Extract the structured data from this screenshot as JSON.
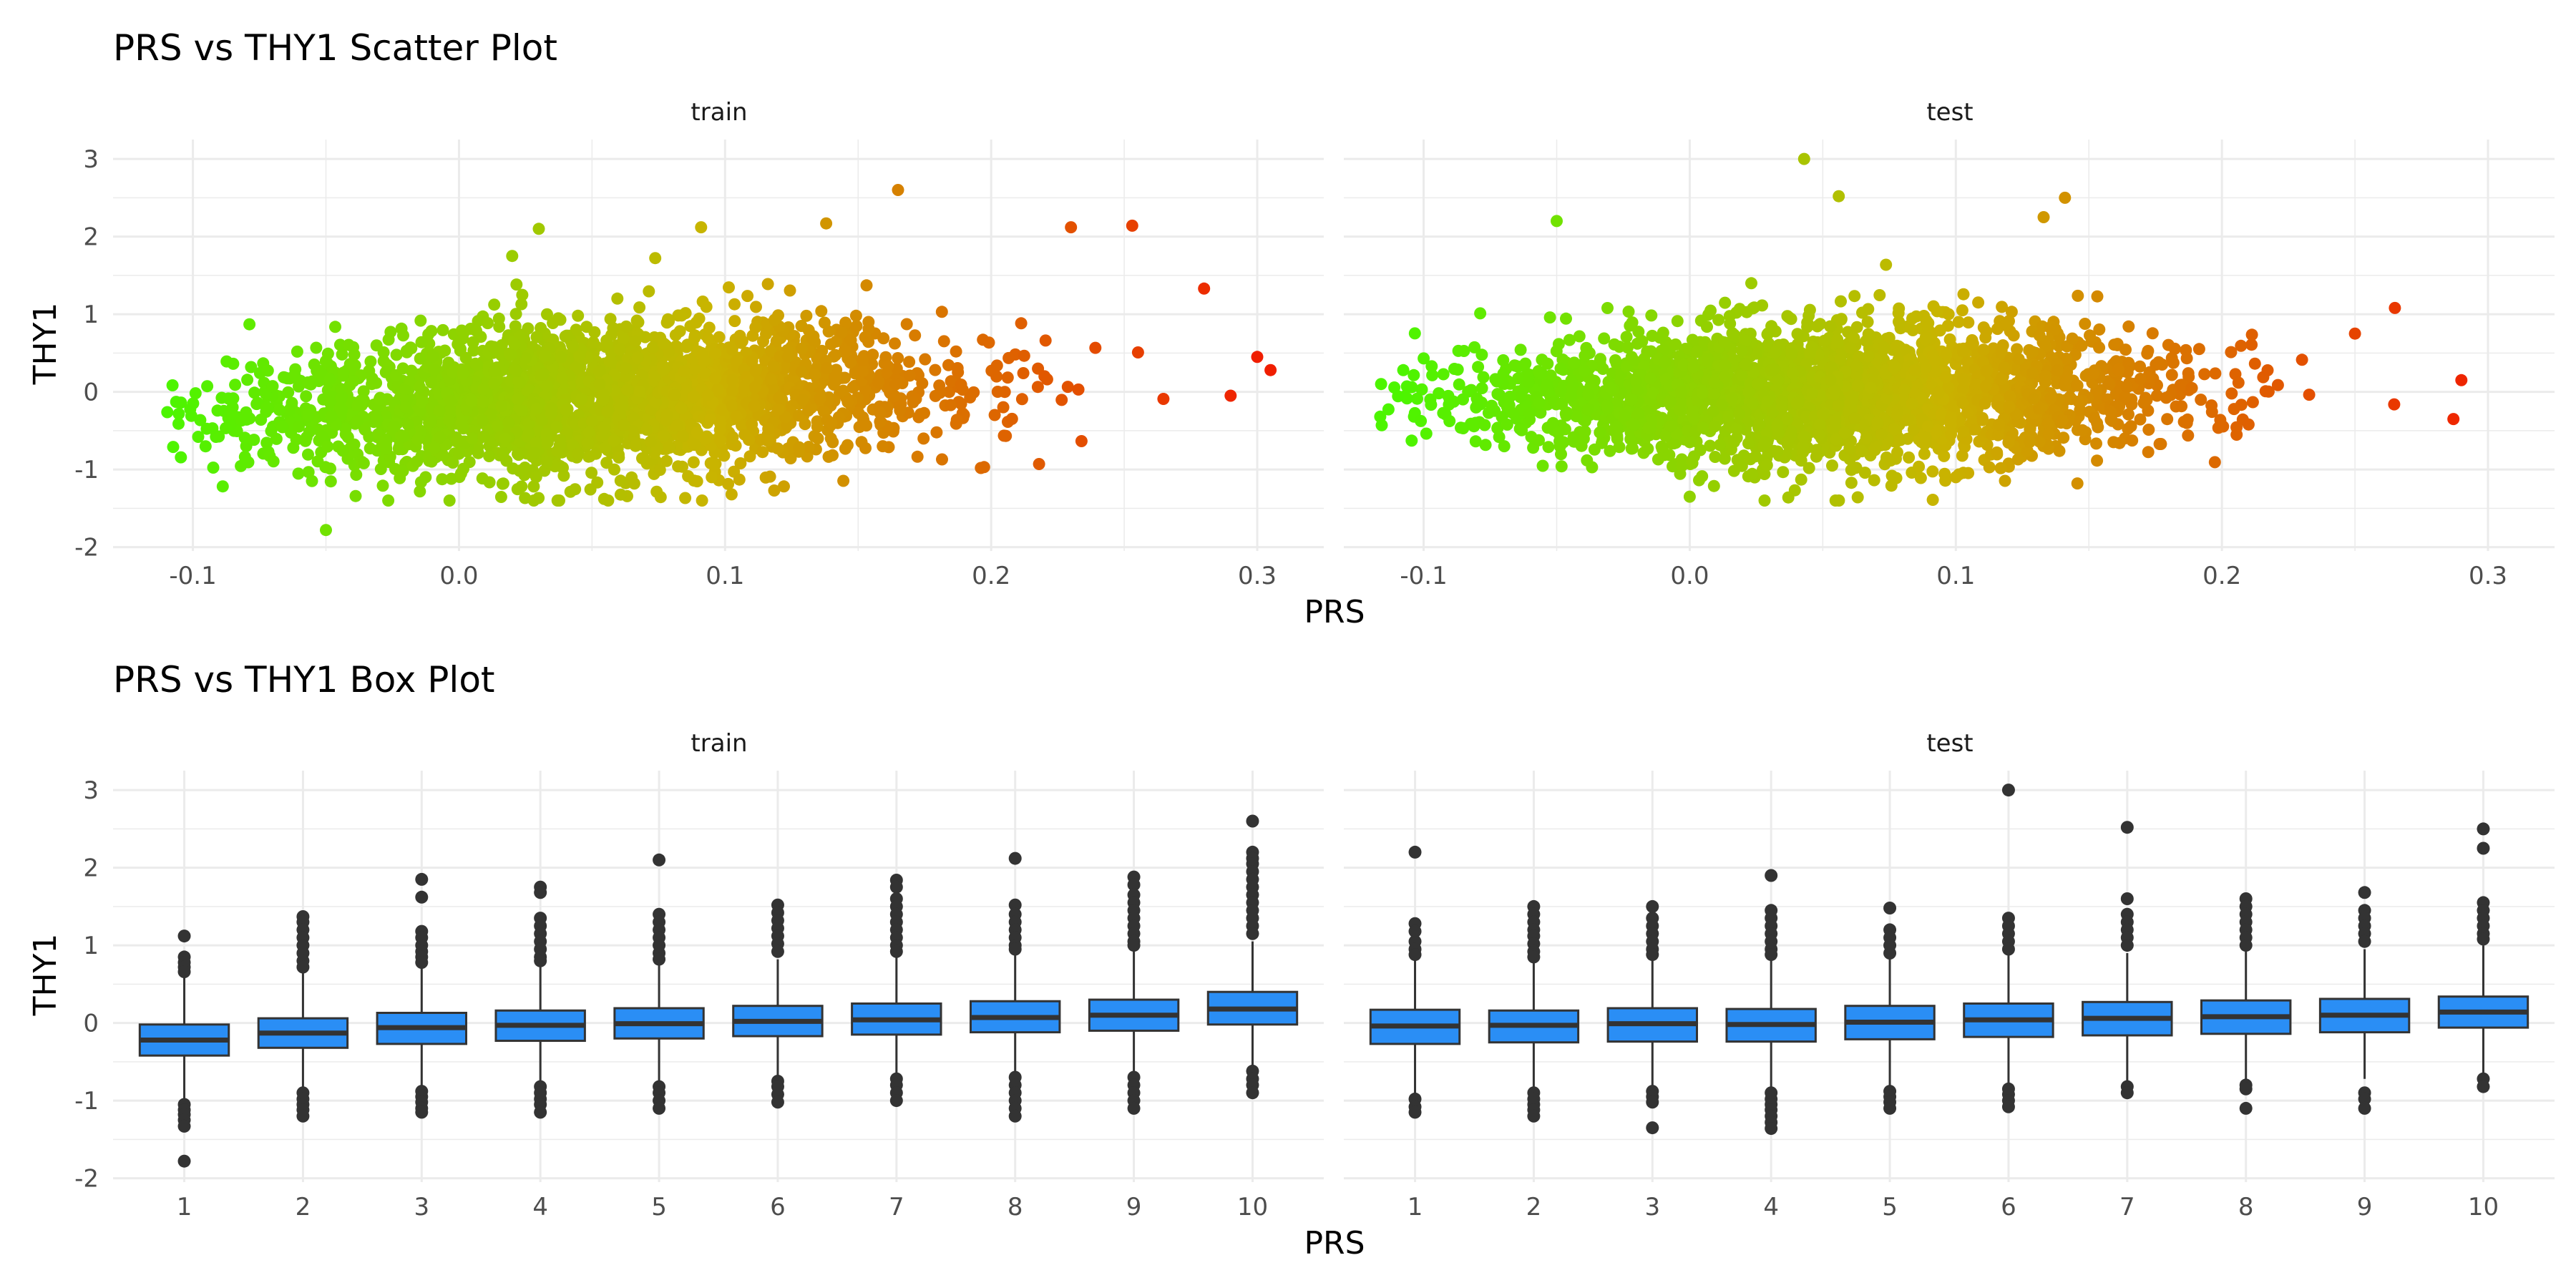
{
  "figure": {
    "scatter_title": "PRS vs THY1 Scatter Plot",
    "box_title": "PRS vs THY1 Box Plot",
    "colors": {
      "low": "#4cf500",
      "mid": "#c9b400",
      "high": "#f01e00",
      "box_fill": "#2a8ef5",
      "box_line": "#333333",
      "grid": "#ebebeb"
    }
  },
  "chart_data": [
    {
      "type": "scatter",
      "title": "PRS vs THY1 Scatter Plot",
      "xlabel": "PRS",
      "ylabel": "THY1",
      "facets": [
        "train",
        "test"
      ],
      "xlim": [
        -0.13,
        0.325
      ],
      "ylim": [
        -2.05,
        3.25
      ],
      "x_ticks": [
        -0.1,
        0.0,
        0.1,
        0.2,
        0.3
      ],
      "x_tick_labels": [
        "-0.1",
        "0.0",
        "0.1",
        "0.2",
        "0.3"
      ],
      "y_ticks": [
        -2,
        -1,
        0,
        1,
        2,
        3
      ],
      "y_tick_labels": [
        "-2",
        "-1",
        "0",
        "1",
        "2",
        "3"
      ],
      "color_scale": "green (low PRS) to red (high PRS)",
      "grid": true,
      "series": [
        {
          "facet": "train",
          "trend": {
            "x_range": [
              -0.11,
              0.3
            ],
            "center_at_min": -0.35,
            "center_at_max": 0.3,
            "spread_sd": 0.5
          },
          "outliers": [
            {
              "x": -0.05,
              "y": -1.78
            },
            {
              "x": 0.165,
              "y": 2.6
            },
            {
              "x": 0.138,
              "y": 2.17
            },
            {
              "x": 0.03,
              "y": 2.1
            },
            {
              "x": 0.091,
              "y": 2.12
            },
            {
              "x": 0.23,
              "y": 2.12
            },
            {
              "x": 0.253,
              "y": 2.14
            },
            {
              "x": -0.098,
              "y": -0.58
            },
            {
              "x": 0.02,
              "y": 1.75
            },
            {
              "x": 0.095,
              "y": -1.1
            },
            {
              "x": 0.29,
              "y": -0.05
            },
            {
              "x": 0.305,
              "y": 0.28
            },
            {
              "x": 0.218,
              "y": -0.93
            },
            {
              "x": 0.28,
              "y": 1.33
            },
            {
              "x": 0.3,
              "y": 0.45
            }
          ]
        },
        {
          "facet": "test",
          "trend": {
            "x_range": [
              -0.12,
              0.29
            ],
            "center_at_min": -0.15,
            "center_at_max": 0.15,
            "spread_sd": 0.46
          },
          "outliers": [
            {
              "x": 0.043,
              "y": 3.0
            },
            {
              "x": -0.05,
              "y": 2.2
            },
            {
              "x": 0.056,
              "y": 2.52
            },
            {
              "x": 0.141,
              "y": 2.5
            },
            {
              "x": 0.133,
              "y": 2.25
            },
            {
              "x": -0.116,
              "y": 0.1
            },
            {
              "x": -0.1,
              "y": 0.43
            },
            {
              "x": 0.287,
              "y": -0.35
            },
            {
              "x": 0.29,
              "y": 0.15
            },
            {
              "x": 0.265,
              "y": 1.08
            },
            {
              "x": 0.21,
              "y": -0.42
            },
            {
              "x": 0.0,
              "y": -1.35
            },
            {
              "x": 0.1,
              "y": -1.1
            },
            {
              "x": 0.25,
              "y": 0.75
            }
          ]
        }
      ]
    },
    {
      "type": "box",
      "title": "PRS vs THY1 Box Plot",
      "xlabel": "PRS",
      "ylabel": "THY1",
      "facets": [
        "train",
        "test"
      ],
      "categories": [
        "1",
        "2",
        "3",
        "4",
        "5",
        "6",
        "7",
        "8",
        "9",
        "10"
      ],
      "ylim": [
        -2.05,
        3.25
      ],
      "y_ticks": [
        -2,
        -1,
        0,
        1,
        2,
        3
      ],
      "y_tick_labels": [
        "-2",
        "-1",
        "0",
        "1",
        "2",
        "3"
      ],
      "grid": true,
      "series": [
        {
          "facet": "train",
          "boxes": [
            {
              "q1": -0.42,
              "median": -0.22,
              "q3": -0.02,
              "whisker_low": -0.98,
              "whisker_high": 0.6,
              "outliers": [
                1.12,
                0.85,
                0.78,
                0.72,
                0.66,
                -1.05,
                -1.12,
                -1.18,
                -1.25,
                -1.33,
                -1.78
              ]
            },
            {
              "q1": -0.32,
              "median": -0.13,
              "q3": 0.06,
              "whisker_low": -0.88,
              "whisker_high": 0.65,
              "outliers": [
                1.37,
                1.3,
                1.2,
                1.1,
                1.0,
                0.9,
                0.8,
                0.72,
                -0.9,
                -0.98,
                -1.05,
                -1.12,
                -1.2
              ]
            },
            {
              "q1": -0.27,
              "median": -0.06,
              "q3": 0.13,
              "whisker_low": -0.85,
              "whisker_high": 0.72,
              "outliers": [
                1.85,
                1.62,
                1.18,
                1.1,
                1.0,
                0.92,
                0.85,
                0.78,
                -0.88,
                -0.95,
                -1.02,
                -1.1,
                -1.15
              ]
            },
            {
              "q1": -0.23,
              "median": -0.03,
              "q3": 0.16,
              "whisker_low": -0.8,
              "whisker_high": 0.75,
              "outliers": [
                1.75,
                1.68,
                1.35,
                1.25,
                1.15,
                1.05,
                0.95,
                0.85,
                0.8,
                -0.82,
                -0.9,
                -0.98,
                -1.05,
                -1.15
              ]
            },
            {
              "q1": -0.2,
              "median": -0.01,
              "q3": 0.19,
              "whisker_low": -0.78,
              "whisker_high": 0.78,
              "outliers": [
                2.1,
                1.4,
                1.3,
                1.2,
                1.1,
                1.0,
                0.9,
                0.82,
                -0.82,
                -0.9,
                -1.0,
                -1.1
              ]
            },
            {
              "q1": -0.17,
              "median": 0.02,
              "q3": 0.22,
              "whisker_low": -0.72,
              "whisker_high": 0.82,
              "outliers": [
                1.52,
                1.42,
                1.32,
                1.22,
                1.12,
                1.02,
                0.92,
                -0.75,
                -0.82,
                -0.92,
                -1.02
              ]
            },
            {
              "q1": -0.15,
              "median": 0.04,
              "q3": 0.25,
              "whisker_low": -0.7,
              "whisker_high": 0.85,
              "outliers": [
                1.84,
                1.75,
                1.6,
                1.5,
                1.4,
                1.3,
                1.2,
                1.1,
                1.0,
                0.92,
                -0.72,
                -0.8,
                -0.9,
                -1.0
              ]
            },
            {
              "q1": -0.12,
              "median": 0.07,
              "q3": 0.28,
              "whisker_low": -0.68,
              "whisker_high": 0.88,
              "outliers": [
                2.12,
                1.52,
                1.4,
                1.3,
                1.2,
                1.1,
                1.0,
                0.95,
                -0.7,
                -0.8,
                -0.9,
                -1.0,
                -1.1,
                -1.2
              ]
            },
            {
              "q1": -0.1,
              "median": 0.1,
              "q3": 0.3,
              "whisker_low": -0.65,
              "whisker_high": 0.92,
              "outliers": [
                1.88,
                1.78,
                1.65,
                1.55,
                1.45,
                1.35,
                1.25,
                1.15,
                1.05,
                1.0,
                -0.7,
                -0.8,
                -0.9,
                -1.0,
                -1.1
              ]
            },
            {
              "q1": -0.02,
              "median": 0.18,
              "q3": 0.4,
              "whisker_low": -0.6,
              "whisker_high": 1.05,
              "outliers": [
                2.6,
                2.2,
                2.12,
                2.05,
                1.95,
                1.85,
                1.75,
                1.65,
                1.55,
                1.45,
                1.35,
                1.25,
                1.15,
                -0.62,
                -0.72,
                -0.8,
                -0.9
              ]
            }
          ]
        },
        {
          "facet": "test",
          "boxes": [
            {
              "q1": -0.27,
              "median": -0.04,
              "q3": 0.17,
              "whisker_low": -0.9,
              "whisker_high": 0.82,
              "outliers": [
                2.2,
                1.28,
                1.18,
                1.05,
                0.95,
                0.88,
                -0.98,
                -1.08,
                -1.15
              ]
            },
            {
              "q1": -0.25,
              "median": -0.03,
              "q3": 0.16,
              "whisker_low": -0.88,
              "whisker_high": 0.8,
              "outliers": [
                1.5,
                1.4,
                1.3,
                1.2,
                1.12,
                1.02,
                0.92,
                0.85,
                -0.9,
                -0.98,
                -1.05,
                -1.12,
                -1.2
              ]
            },
            {
              "q1": -0.24,
              "median": -0.01,
              "q3": 0.19,
              "whisker_low": -0.85,
              "whisker_high": 0.82,
              "outliers": [
                1.5,
                1.35,
                1.25,
                1.15,
                1.05,
                0.95,
                0.88,
                -0.88,
                -0.95,
                -1.02,
                -1.35
              ]
            },
            {
              "q1": -0.24,
              "median": -0.02,
              "q3": 0.18,
              "whisker_low": -0.86,
              "whisker_high": 0.82,
              "outliers": [
                1.9,
                1.45,
                1.35,
                1.25,
                1.15,
                1.05,
                0.95,
                0.88,
                -0.9,
                -0.98,
                -1.05,
                -1.12,
                -1.2,
                -1.28,
                -1.36
              ]
            },
            {
              "q1": -0.21,
              "median": 0.01,
              "q3": 0.22,
              "whisker_low": -0.82,
              "whisker_high": 0.85,
              "outliers": [
                1.48,
                1.2,
                1.1,
                1.0,
                0.9,
                -0.88,
                -0.95,
                -1.02,
                -1.1
              ]
            },
            {
              "q1": -0.18,
              "median": 0.04,
              "q3": 0.25,
              "whisker_low": -0.8,
              "whisker_high": 0.88,
              "outliers": [
                3.0,
                1.35,
                1.25,
                1.15,
                1.05,
                0.95,
                -0.85,
                -0.92,
                -1.0,
                -1.08
              ]
            },
            {
              "q1": -0.16,
              "median": 0.06,
              "q3": 0.27,
              "whisker_low": -0.78,
              "whisker_high": 0.9,
              "outliers": [
                2.52,
                1.6,
                1.4,
                1.3,
                1.2,
                1.1,
                1.0,
                -0.82,
                -0.9
              ]
            },
            {
              "q1": -0.14,
              "median": 0.08,
              "q3": 0.29,
              "whisker_low": -0.75,
              "whisker_high": 0.92,
              "outliers": [
                1.6,
                1.5,
                1.4,
                1.3,
                1.2,
                1.1,
                1.0,
                -0.8,
                -0.85,
                -1.1
              ]
            },
            {
              "q1": -0.12,
              "median": 0.1,
              "q3": 0.31,
              "whisker_low": -0.72,
              "whisker_high": 0.95,
              "outliers": [
                1.68,
                1.45,
                1.35,
                1.25,
                1.15,
                1.05,
                -0.9,
                -0.98,
                -1.1
              ]
            },
            {
              "q1": -0.06,
              "median": 0.14,
              "q3": 0.34,
              "whisker_low": -0.68,
              "whisker_high": 1.0,
              "outliers": [
                2.5,
                2.25,
                1.55,
                1.45,
                1.35,
                1.25,
                1.15,
                1.08,
                -0.72,
                -0.82
              ]
            }
          ]
        }
      ]
    }
  ]
}
